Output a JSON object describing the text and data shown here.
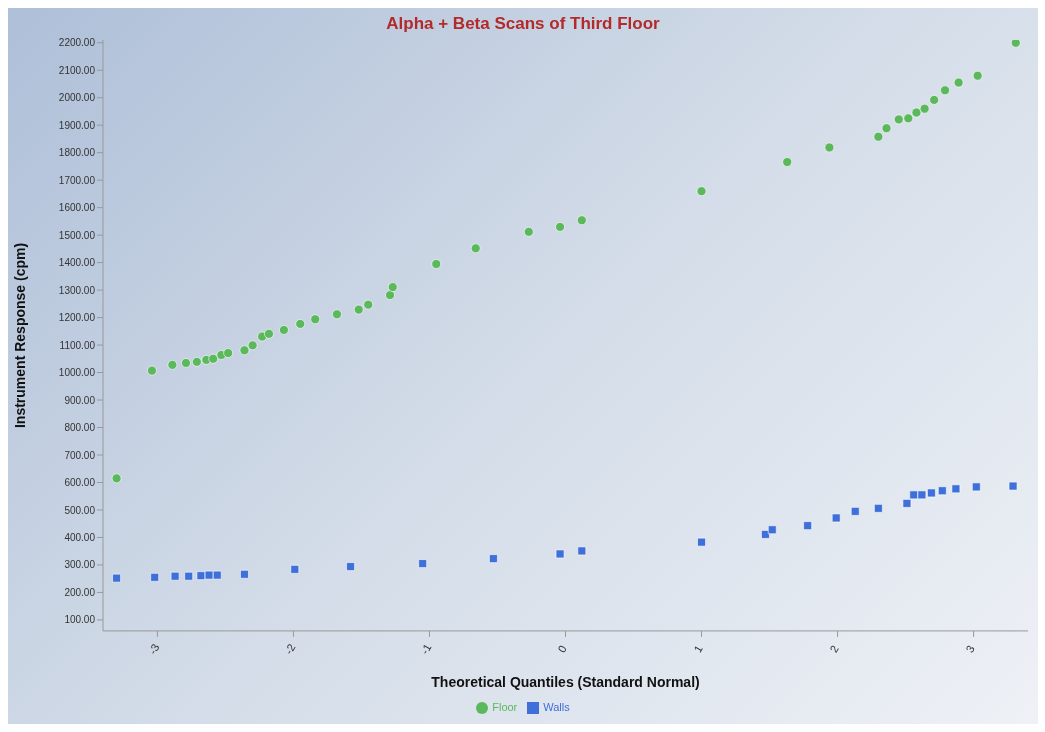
{
  "chart_data": {
    "type": "scatter",
    "title": "Alpha + Beta Scans of Third Floor",
    "xlabel": "Theoretical Quantiles (Standard Normal)",
    "ylabel": "Instrument Response (cpm)",
    "xlim": [
      -3.4,
      3.4
    ],
    "xticks": [
      -3,
      -2,
      -1,
      0,
      1,
      2,
      3
    ],
    "ylim": [
      60,
      2210
    ],
    "yticks": [
      {
        "value": 100,
        "label": "100.00"
      },
      {
        "value": 200,
        "label": "200.00"
      },
      {
        "value": 300,
        "label": "300.00"
      },
      {
        "value": 400,
        "label": "400.00"
      },
      {
        "value": 500,
        "label": "500.00"
      },
      {
        "value": 600,
        "label": "600.00"
      },
      {
        "value": 700,
        "label": "700.00"
      },
      {
        "value": 800,
        "label": "800.00"
      },
      {
        "value": 900,
        "label": "900.00"
      },
      {
        "value": 1000,
        "label": "1000.00"
      },
      {
        "value": 1100,
        "label": "1100.00"
      },
      {
        "value": 1200,
        "label": "1200.00"
      },
      {
        "value": 1300,
        "label": "1300.00"
      },
      {
        "value": 1400,
        "label": "1400.00"
      },
      {
        "value": 1500,
        "label": "1500.00"
      },
      {
        "value": 1600,
        "label": "1600.00"
      },
      {
        "value": 1700,
        "label": "1700.00"
      },
      {
        "value": 1800,
        "label": "1800.00"
      },
      {
        "value": 1900,
        "label": "1900.00"
      },
      {
        "value": 2000,
        "label": "2000.00"
      },
      {
        "value": 2100,
        "label": "2100.00"
      },
      {
        "value": 2200,
        "label": "2200.00"
      }
    ],
    "grid": false,
    "legend": "bottom",
    "series": [
      {
        "name": "Walls",
        "color": "#3f6fd8",
        "marker": "square",
        "x": [
          -3.3,
          -3.02,
          -2.87,
          -2.77,
          -2.68,
          -2.62,
          -2.56,
          -2.36,
          -1.99,
          -1.58,
          -1.05,
          -0.53,
          -0.04,
          0.12,
          1.0,
          1.47,
          1.52,
          1.78,
          1.99,
          2.13,
          2.3,
          2.51,
          2.56,
          2.62,
          2.69,
          2.77,
          2.87,
          3.02,
          3.29
        ],
        "values": [
          252,
          255,
          259,
          259,
          261,
          263,
          263,
          266,
          284,
          294,
          305,
          323,
          340,
          351,
          383,
          411,
          428,
          443,
          471,
          495,
          506,
          524,
          555,
          555,
          562,
          570,
          577,
          584,
          587
        ]
      },
      {
        "name": "Floor",
        "color": "#5cb85c",
        "marker": "circle",
        "x": [
          -3.3,
          -3.04,
          -2.89,
          -2.79,
          -2.71,
          -2.64,
          -2.59,
          -2.53,
          -2.48,
          -2.36,
          -2.3,
          -2.23,
          -2.18,
          -2.07,
          -1.95,
          -1.84,
          -1.68,
          -1.52,
          -1.45,
          -1.29,
          -1.27,
          -0.95,
          -0.66,
          -0.27,
          -0.04,
          0.12,
          1.0,
          1.63,
          1.94,
          2.3,
          2.36,
          2.45,
          2.52,
          2.58,
          2.64,
          2.71,
          2.79,
          2.89,
          3.03,
          3.31
        ],
        "values": [
          615,
          1007,
          1028,
          1035,
          1039,
          1046,
          1050,
          1064,
          1071,
          1081,
          1099,
          1131,
          1141,
          1155,
          1177,
          1194,
          1212,
          1229,
          1247,
          1282,
          1311,
          1395,
          1452,
          1512,
          1530,
          1554,
          1660,
          1766,
          1819,
          1858,
          1889,
          1921,
          1925,
          1946,
          1960,
          1992,
          2027,
          2055,
          2080,
          2200
        ]
      }
    ]
  }
}
